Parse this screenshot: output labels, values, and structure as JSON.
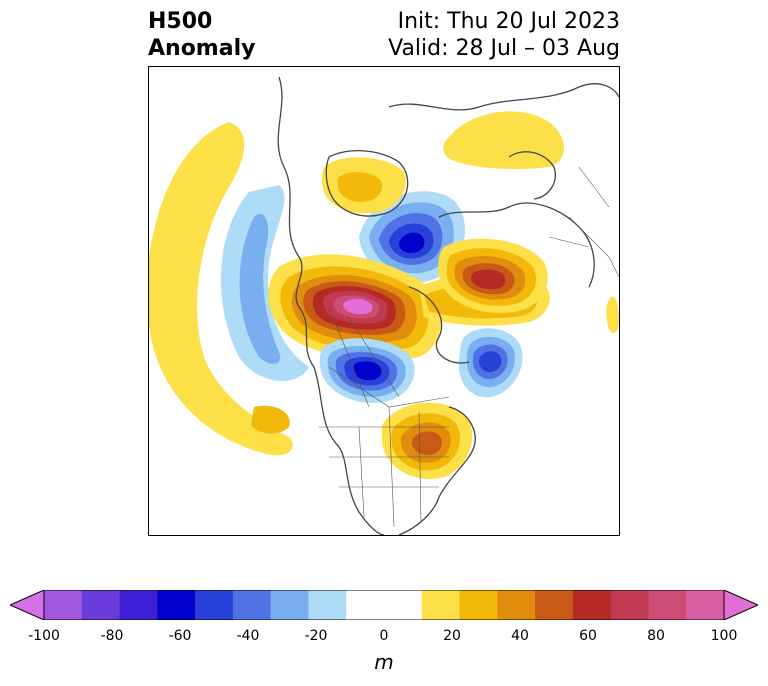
{
  "title": {
    "left_line1": "H500",
    "left_line2": "Anomaly",
    "right_line1": "Init: Thu 20 Jul 2023",
    "right_line2": "Valid: 28 Jul – 03 Aug"
  },
  "colorbar": {
    "unit": "m",
    "min": -100,
    "max": 100,
    "ticks": [
      "-100",
      "-80",
      "-60",
      "-40",
      "-20",
      "0",
      "20",
      "40",
      "60",
      "80",
      "100"
    ],
    "colors": [
      "#d670e6",
      "#a157e0",
      "#6a3bdc",
      "#3d1fd6",
      "#0000cc",
      "#2640d8",
      "#4f73e4",
      "#79aef0",
      "#aedcf8",
      "#ffffff",
      "#ffffff",
      "#fde047",
      "#f2b90b",
      "#e08d0e",
      "#c85a16",
      "#b52a22",
      "#c03a52",
      "#cd4d77",
      "#da5fa5",
      "#e46ed6"
    ]
  },
  "anomaly_colors": {
    "neg1": "#aedcf8",
    "neg2": "#79aef0",
    "neg3": "#4f73e4",
    "neg4": "#2640d8",
    "neg5": "#0000cc",
    "pos1": "#fde047",
    "pos2": "#f2b90b",
    "pos3": "#e08d0e",
    "pos4": "#c85a16",
    "pos5": "#b52a22",
    "pos6": "#c03a52",
    "pos7": "#cd4d77",
    "pos8": "#e46ed6"
  }
}
